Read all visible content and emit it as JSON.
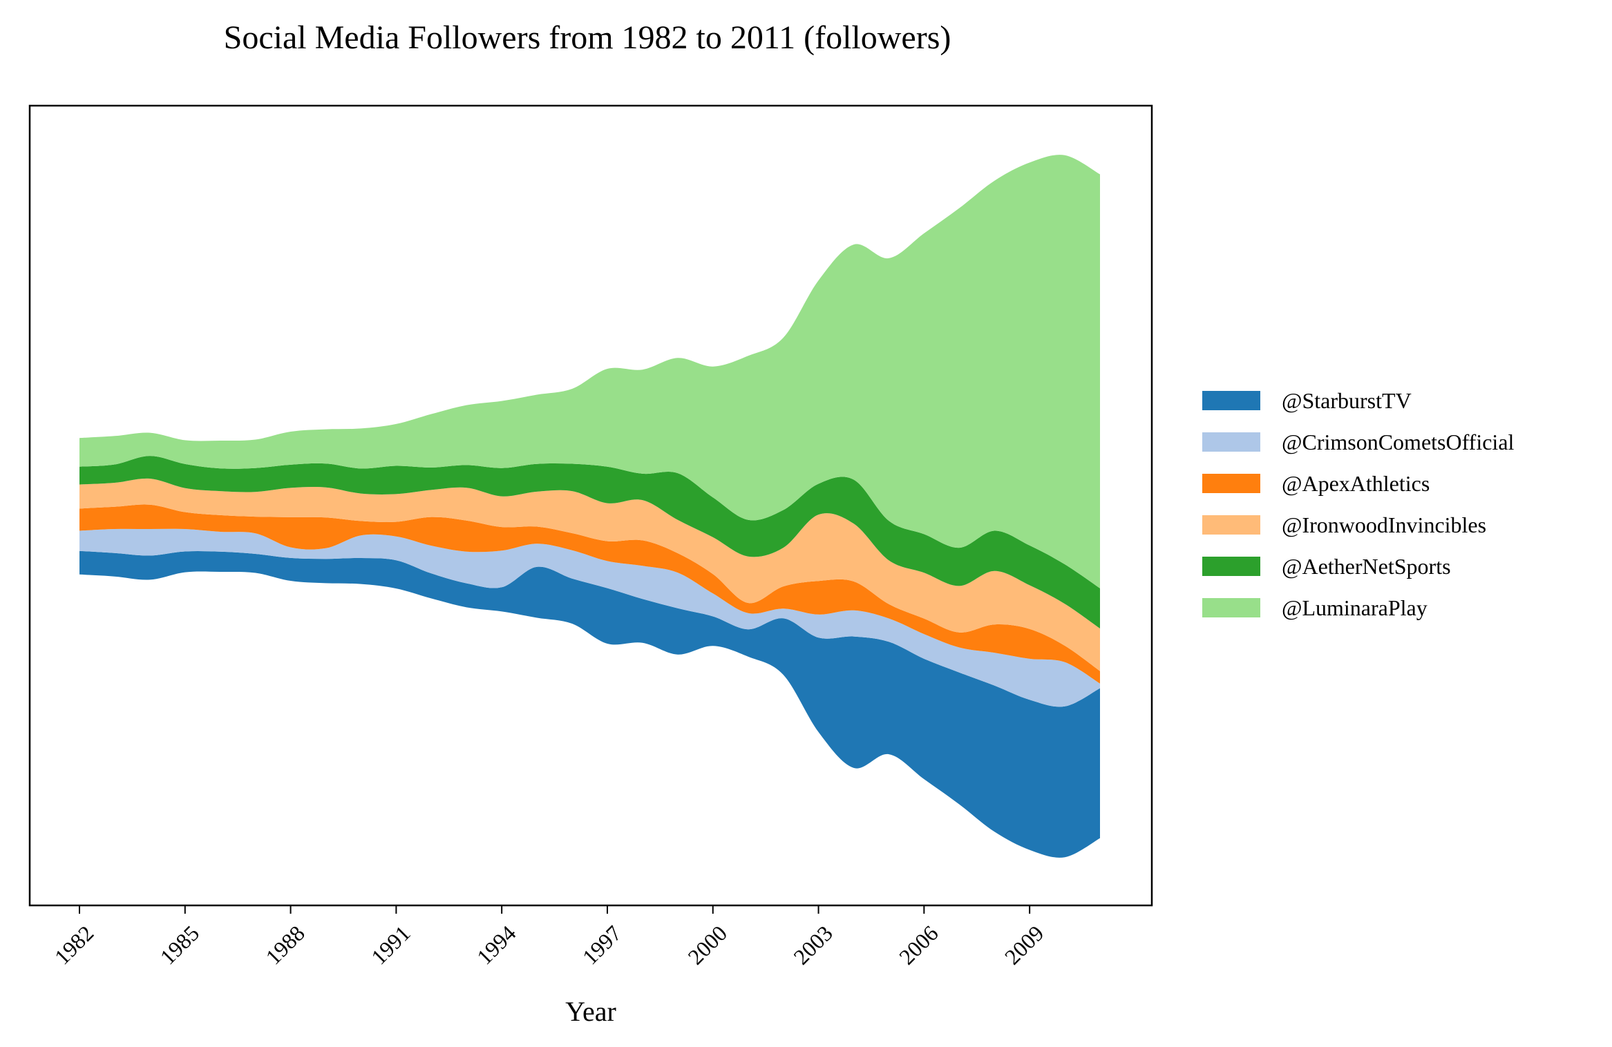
{
  "chart_data": {
    "type": "area",
    "subtype": "streamgraph",
    "title": "Social Media Followers from 1982 to 2011 (followers)",
    "xlabel": "Year",
    "ylabel": "",
    "x": [
      1982,
      1983,
      1984,
      1985,
      1986,
      1987,
      1988,
      1989,
      1990,
      1991,
      1992,
      1993,
      1994,
      1995,
      1996,
      1997,
      1998,
      1999,
      2000,
      2001,
      2002,
      2003,
      2004,
      2005,
      2006,
      2007,
      2008,
      2009,
      2010,
      2011
    ],
    "xticks": [
      "1982",
      "1985",
      "1988",
      "1991",
      "1994",
      "1997",
      "2000",
      "2003",
      "2006",
      "2009"
    ],
    "baseline": "centered",
    "grid": false,
    "legend_position": "right",
    "series": [
      {
        "name": "@StarburstTV",
        "color": "#1f77b4",
        "values": [
          1020,
          1010,
          1040,
          900,
          870,
          820,
          990,
          1050,
          1120,
          1220,
          1080,
          1040,
          1050,
          2200,
          1950,
          2400,
          1900,
          2000,
          1280,
          1180,
          2440,
          4080,
          5680,
          4860,
          5200,
          5700,
          6320,
          6490,
          6520,
          6480
        ]
      },
      {
        "name": "@CrimsonCometsOfficial",
        "color": "#aec7e8",
        "values": [
          870,
          1040,
          1150,
          970,
          860,
          890,
          460,
          460,
          980,
          1030,
          1200,
          1370,
          1580,
          1000,
          1220,
          1170,
          1430,
          1540,
          990,
          700,
          420,
          1000,
          1130,
          1010,
          1070,
          1080,
          1420,
          1770,
          1910,
          200
        ]
      },
      {
        "name": "@ApexAthletics",
        "color": "#ff7f0e",
        "values": [
          960,
          960,
          1050,
          730,
          720,
          720,
          1300,
          1330,
          620,
          630,
          1240,
          1340,
          1020,
          740,
          740,
          860,
          1100,
          840,
          840,
          440,
          960,
          1450,
          1250,
          620,
          670,
          650,
          1220,
          1290,
          710,
          540
        ]
      },
      {
        "name": "@IronwoodInvincibles",
        "color": "#ffbb78",
        "values": [
          1040,
          1040,
          1130,
          1040,
          1040,
          1070,
          1270,
          1300,
          1190,
          1200,
          1170,
          1420,
          1330,
          1510,
          1820,
          1640,
          1740,
          1440,
          1590,
          2010,
          1670,
          2870,
          2500,
          1890,
          1980,
          2010,
          2310,
          1890,
          1810,
          1840
        ]
      },
      {
        "name": "@AetherNetSports",
        "color": "#2ca02c",
        "values": [
          770,
          790,
          980,
          1040,
          980,
          1030,
          1000,
          1030,
          1080,
          1220,
          970,
          980,
          1220,
          1200,
          1180,
          1580,
          1140,
          2020,
          1720,
          1580,
          1630,
          1330,
          1900,
          1710,
          1670,
          1650,
          1740,
          1720,
          1710,
          1740
        ]
      },
      {
        "name": "@LuminaraPlay",
        "color": "#98df8a",
        "values": [
          1240,
          1230,
          1000,
          1030,
          1200,
          1230,
          1430,
          1480,
          1730,
          1810,
          2310,
          2590,
          2900,
          2990,
          3240,
          4230,
          4500,
          4980,
          5660,
          7090,
          7450,
          8790,
          10160,
          11350,
          13000,
          14680,
          15130,
          16550,
          17680,
          17890
        ]
      }
    ]
  }
}
